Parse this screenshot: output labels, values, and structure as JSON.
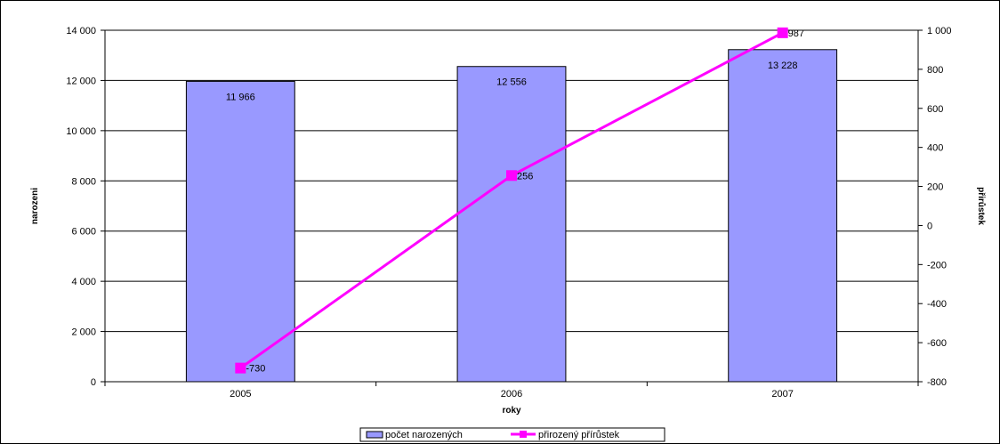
{
  "chart_data": {
    "type": "bar",
    "title": "",
    "categories": [
      "2005",
      "2006",
      "2007"
    ],
    "xlabel": "roky",
    "ylabel": "narozeni",
    "y2label": "přirůstek",
    "ylim": [
      0,
      14000
    ],
    "y2lim": [
      -800,
      1000
    ],
    "y_ticks": [
      0,
      2000,
      4000,
      6000,
      8000,
      10000,
      12000,
      14000
    ],
    "y_tick_labels": [
      "0",
      "2 000",
      "4 000",
      "6 000",
      "8 000",
      "10 000",
      "12 000",
      "14 000"
    ],
    "y2_ticks": [
      -800,
      -600,
      -400,
      -200,
      0,
      200,
      400,
      600,
      800,
      1000
    ],
    "y2_tick_labels": [
      "-800",
      "-600",
      "-400",
      "-200",
      "0",
      "200",
      "400",
      "600",
      "800",
      "1 000"
    ],
    "grid": true,
    "legend_position": "bottom",
    "series": [
      {
        "name": "počet narozených",
        "type": "bar",
        "axis": "left",
        "values": [
          11966,
          12556,
          13228
        ],
        "data_labels": [
          "11 966",
          "12 556",
          "13 228"
        ],
        "color": "#9999ff"
      },
      {
        "name": "přirozený přírůstek",
        "type": "line",
        "axis": "right",
        "values": [
          -730,
          256,
          987
        ],
        "data_labels": [
          "-730",
          "256",
          "987"
        ],
        "color": "#ff00ff"
      }
    ]
  }
}
